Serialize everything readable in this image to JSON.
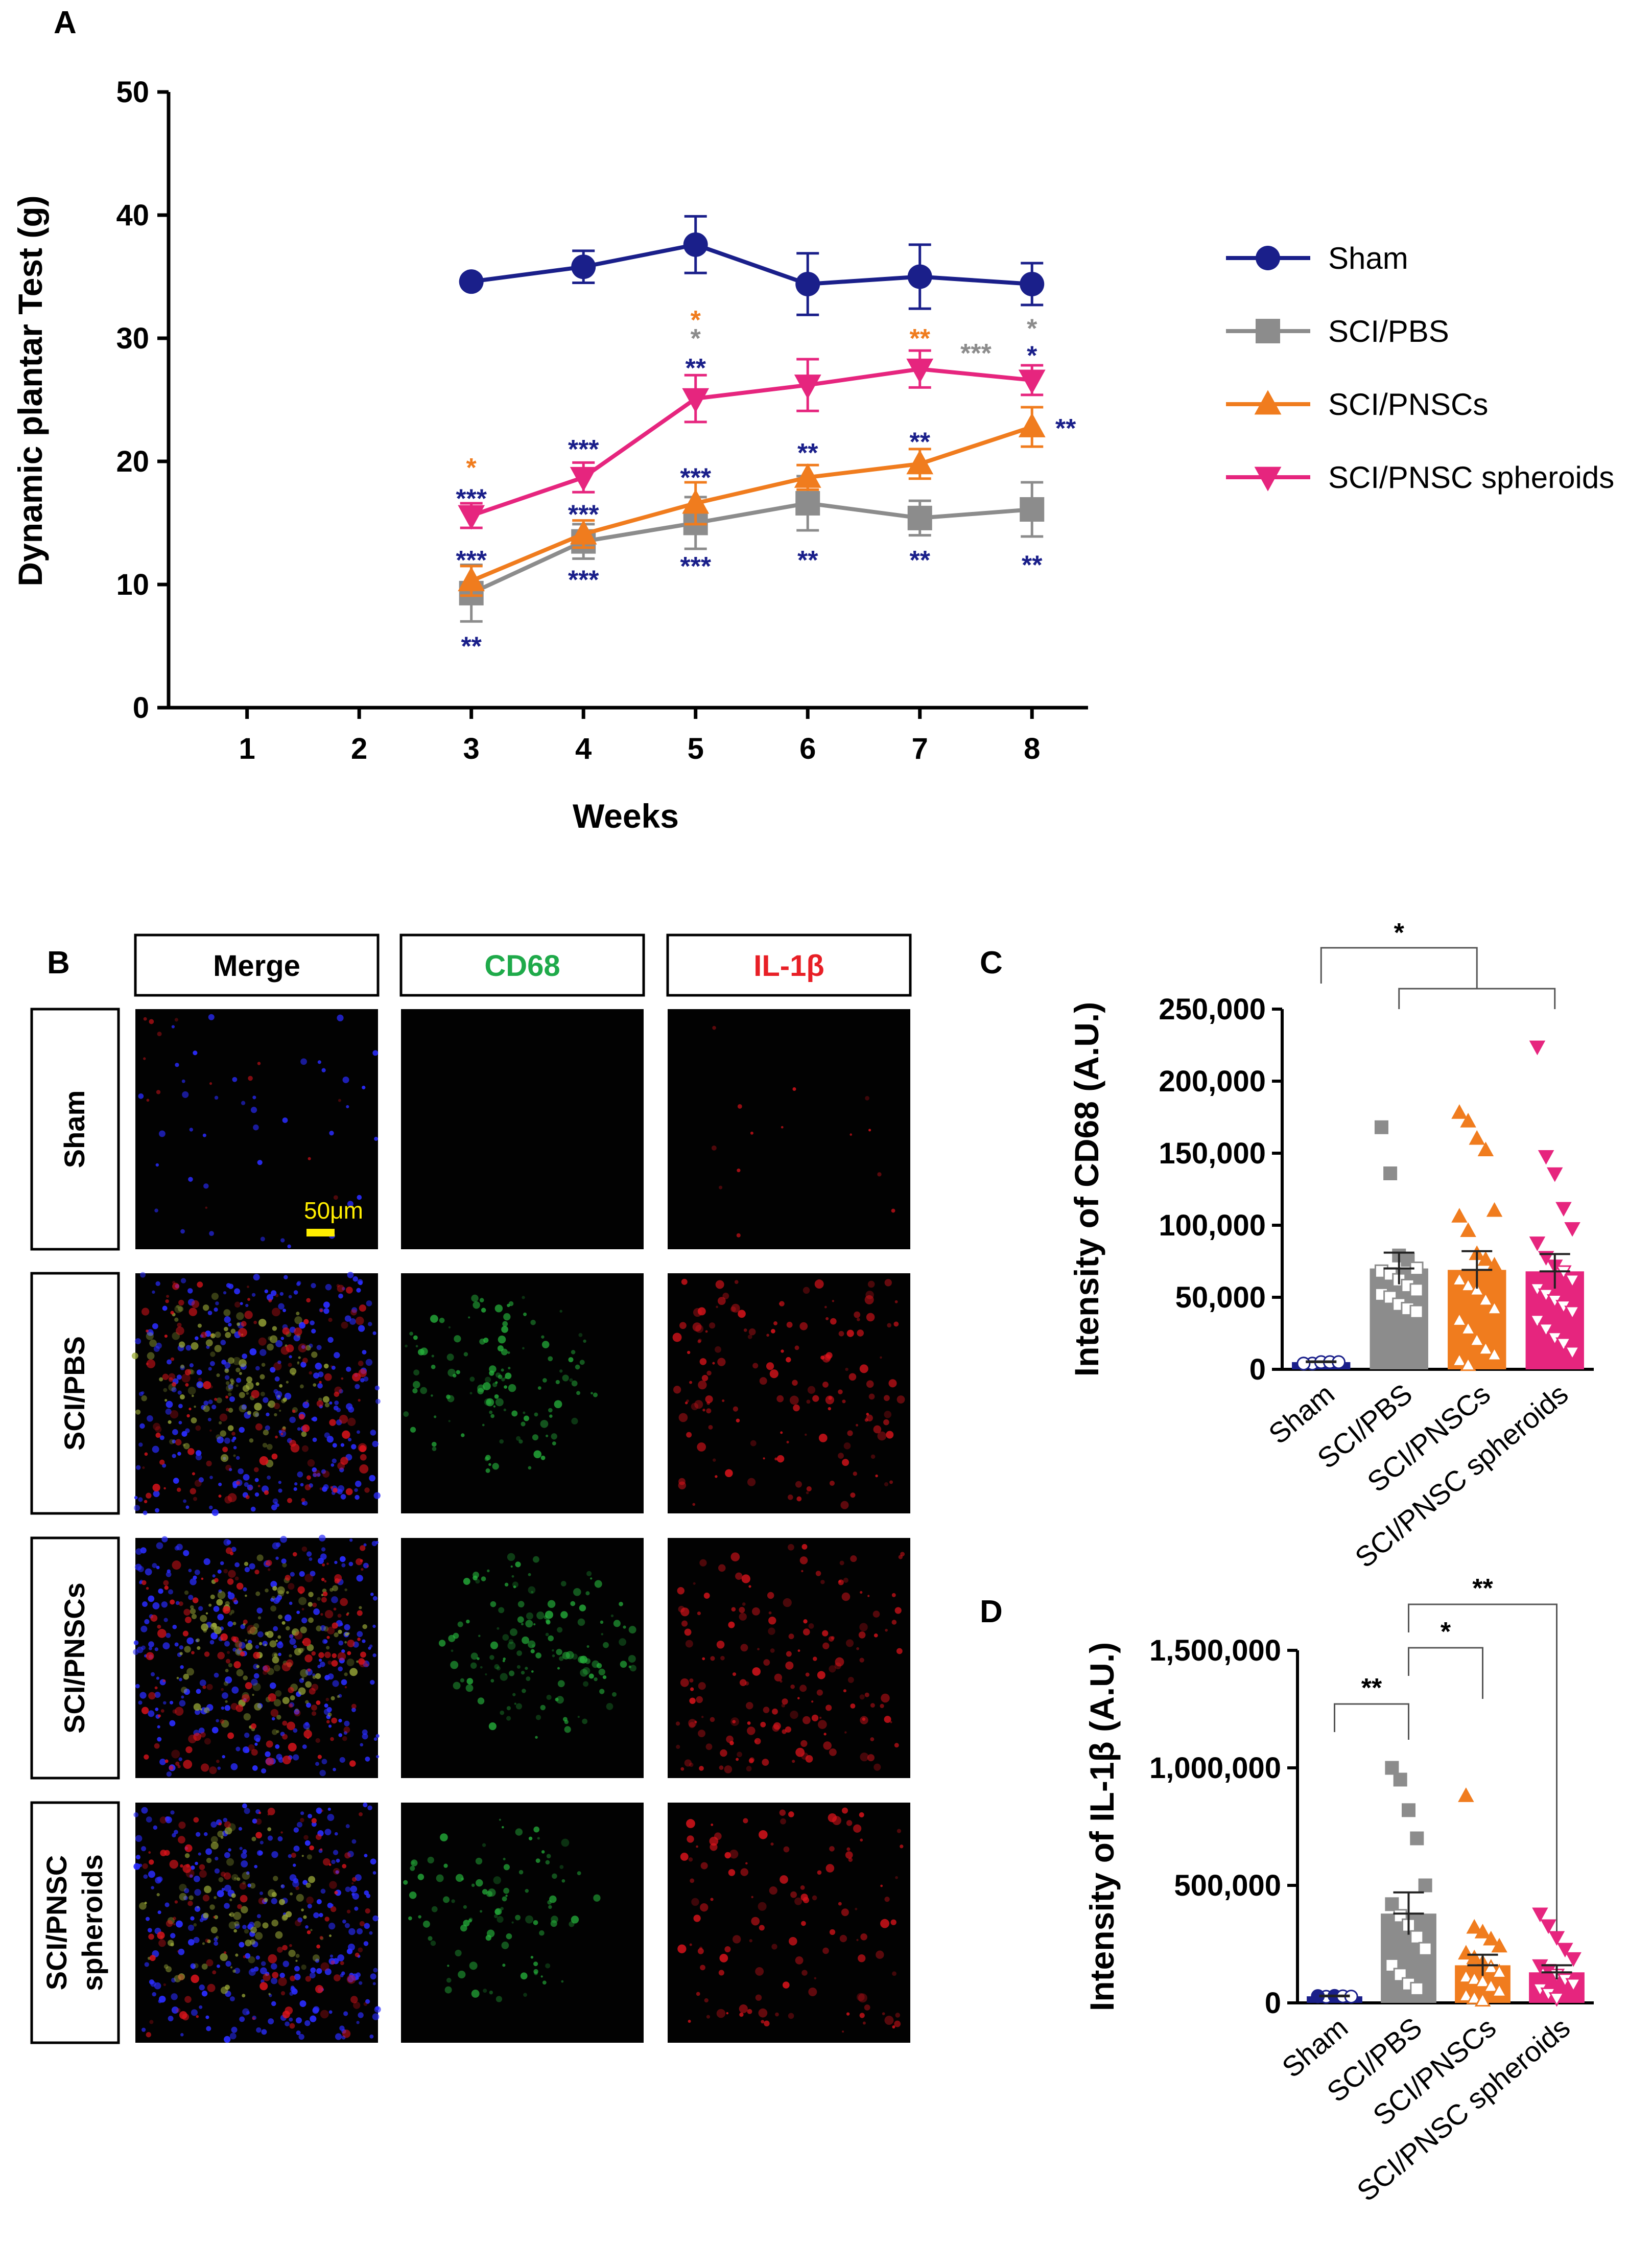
{
  "colors": {
    "sham": "#1a1f8a",
    "pbs": "#8c8c8c",
    "pnsc": "#f07c1e",
    "spheroid": "#e6257e",
    "sig_navy": "#1a1f8a",
    "scale_bar": "#ffee00",
    "merge_label": "#000000",
    "cd68_label": "#1faa4a",
    "il1b_label": "#e81f26"
  },
  "panel_labels": {
    "a": "A",
    "b": "B",
    "c": "C",
    "d": "D"
  },
  "chart_data": [
    {
      "panel": "A",
      "type": "line",
      "xlabel": "Weeks",
      "ylabel": "Dynamic plantar Test (g)",
      "x_ticks": [
        "1",
        "2",
        "3",
        "4",
        "5",
        "6",
        "7",
        "8"
      ],
      "y_ticks": [
        "0",
        "10",
        "20",
        "30",
        "40",
        "50"
      ],
      "ylim": [
        0,
        50
      ],
      "xlim": [
        0.3,
        8.5
      ],
      "legend_position": "right",
      "series": [
        {
          "name": "Sham",
          "key": "sham",
          "marker": "circle",
          "x": [
            3,
            4,
            5,
            6,
            7,
            8
          ],
          "y": [
            34.6,
            35.8,
            37.6,
            34.4,
            35.0,
            34.4
          ],
          "err": [
            0.2,
            1.3,
            2.3,
            2.5,
            2.6,
            1.7
          ]
        },
        {
          "name": "SCI/PBS",
          "key": "pbs",
          "marker": "square",
          "x": [
            3,
            4,
            5,
            6,
            7,
            8
          ],
          "y": [
            9.3,
            13.5,
            15.0,
            16.6,
            15.4,
            16.1
          ],
          "err": [
            2.3,
            1.4,
            2.1,
            2.2,
            1.4,
            2.2
          ]
        },
        {
          "name": "SCI/PNSCs",
          "key": "pnsc",
          "marker": "triangle-up",
          "x": [
            3,
            4,
            5,
            6,
            7,
            8
          ],
          "y": [
            10.3,
            14.1,
            16.6,
            18.7,
            19.8,
            22.8
          ],
          "err": [
            1.2,
            1.1,
            1.7,
            1.0,
            1.2,
            1.6
          ]
        },
        {
          "name": "SCI/PNSC spheroids",
          "key": "spheroid",
          "marker": "triangle-down",
          "x": [
            3,
            4,
            5,
            6,
            7,
            8
          ],
          "y": [
            15.6,
            18.7,
            25.1,
            26.2,
            27.5,
            26.6
          ],
          "err": [
            1.0,
            1.2,
            1.9,
            2.1,
            1.5,
            1.2
          ]
        }
      ],
      "annotations": [
        {
          "x": 3,
          "y": 19.5,
          "text": "*",
          "color": "pnsc"
        },
        {
          "x": 3,
          "y": 17.0,
          "text": "***",
          "color": "sig_navy"
        },
        {
          "x": 3,
          "y": 12.0,
          "text": "***",
          "color": "sig_navy"
        },
        {
          "x": 3,
          "y": 5.0,
          "text": "**",
          "color": "sig_navy"
        },
        {
          "x": 4,
          "y": 21.0,
          "text": "***",
          "color": "sig_navy"
        },
        {
          "x": 4,
          "y": 15.7,
          "text": "***",
          "color": "sig_navy"
        },
        {
          "x": 4,
          "y": 10.4,
          "text": "***",
          "color": "sig_navy"
        },
        {
          "x": 5,
          "y": 31.5,
          "text": "*",
          "color": "pnsc"
        },
        {
          "x": 5,
          "y": 30.0,
          "text": "*",
          "color": "pbs"
        },
        {
          "x": 5,
          "y": 27.6,
          "text": "**",
          "color": "sig_navy"
        },
        {
          "x": 5,
          "y": 18.7,
          "text": "***",
          "color": "sig_navy"
        },
        {
          "x": 5,
          "y": 11.5,
          "text": "***",
          "color": "sig_navy"
        },
        {
          "x": 6,
          "y": 20.7,
          "text": "**",
          "color": "sig_navy"
        },
        {
          "x": 6,
          "y": 12.0,
          "text": "**",
          "color": "sig_navy"
        },
        {
          "x": 7,
          "y": 30.0,
          "text": "**",
          "color": "pnsc"
        },
        {
          "x": 7.5,
          "y": 28.8,
          "text": "***",
          "color": "pbs"
        },
        {
          "x": 7,
          "y": 21.6,
          "text": "**",
          "color": "sig_navy"
        },
        {
          "x": 7,
          "y": 12.0,
          "text": "**",
          "color": "sig_navy"
        },
        {
          "x": 8,
          "y": 30.8,
          "text": "*",
          "color": "pbs"
        },
        {
          "x": 8,
          "y": 28.6,
          "text": "*",
          "color": "sig_navy"
        },
        {
          "x": 8.3,
          "y": 22.7,
          "text": "**",
          "color": "sig_navy"
        },
        {
          "x": 8,
          "y": 11.6,
          "text": "**",
          "color": "sig_navy"
        }
      ]
    },
    {
      "panel": "C",
      "type": "bar",
      "ylabel": "Intensity of CD68 (A.U.)",
      "categories": [
        "Sham",
        "SCI/PBS",
        "SCI/PNSCs",
        "SCI/PNSC spheroids"
      ],
      "keys": [
        "sham",
        "pbs",
        "pnsc",
        "spheroid"
      ],
      "markers": [
        "circle",
        "square",
        "triangle-up",
        "triangle-down"
      ],
      "values": [
        5000,
        70000,
        69000,
        68000
      ],
      "sem": [
        500,
        11000,
        13000,
        12000
      ],
      "ylim": [
        0,
        250000
      ],
      "y_ticks": [
        "0",
        "50,000",
        "100,000",
        "150,000",
        "200,000",
        "250,000"
      ],
      "points": [
        [
          4000,
          4000,
          5000,
          5000,
          5000,
          4000
        ],
        [
          168000,
          136000,
          79000,
          76000,
          70000,
          68000,
          66000,
          62000,
          58000,
          55000,
          52000,
          50000,
          45000,
          42000,
          40000
        ],
        [
          178000,
          172000,
          160000,
          152000,
          110000,
          106000,
          96000,
          80000,
          76000,
          72000,
          62000,
          58000,
          55000,
          48000,
          42000,
          34000,
          28000,
          20000,
          14000,
          10000,
          6000,
          3000
        ],
        [
          224000,
          148000,
          136000,
          112000,
          98000,
          88000,
          78000,
          72000,
          68000,
          62000,
          56000,
          52000,
          48000,
          44000,
          40000,
          34000,
          28000,
          22000,
          18000,
          12000
        ]
      ],
      "significance": [
        {
          "from": 0,
          "to_group": [
            1,
            2,
            3
          ],
          "text": "*"
        }
      ]
    },
    {
      "panel": "D",
      "type": "bar",
      "ylabel": "Intensity of IL-1β (A.U.)",
      "categories": [
        "Sham",
        "SCI/PBS",
        "SCI/PNSCs",
        "SCI/PNSC spheroids"
      ],
      "keys": [
        "sham",
        "pbs",
        "pnsc",
        "spheroid"
      ],
      "markers": [
        "circle",
        "square",
        "triangle-up",
        "triangle-down"
      ],
      "values": [
        28000,
        380000,
        160000,
        130000
      ],
      "sem": [
        3000,
        90000,
        45000,
        30000
      ],
      "ylim": [
        0,
        1500000
      ],
      "y_ticks": [
        "0",
        "500,000",
        "1,000,000",
        "1,500,000"
      ],
      "points": [
        [
          28000,
          26000,
          30000,
          28000,
          27000,
          29000
        ],
        [
          1000000,
          950000,
          820000,
          700000,
          500000,
          420000,
          370000,
          330000,
          280000,
          230000,
          160000,
          120000,
          80000,
          60000
        ],
        [
          880000,
          320000,
          300000,
          270000,
          240000,
          210000,
          190000,
          170000,
          150000,
          130000,
          110000,
          100000,
          90000,
          70000,
          50000,
          30000,
          20000,
          10000
        ],
        [
          380000,
          330000,
          280000,
          230000,
          190000,
          160000,
          140000,
          120000,
          100000,
          80000,
          60000,
          40000,
          20000
        ]
      ],
      "significance": [
        {
          "from": 0,
          "to": 1,
          "text": "**",
          "level": 0
        },
        {
          "from": 1,
          "to": 2,
          "text": "*",
          "level": 1
        },
        {
          "from": 1,
          "to": 3,
          "text": "**",
          "level": 2
        }
      ]
    }
  ],
  "micrograph_panel": {
    "column_headers": [
      "Merge",
      "CD68",
      "IL-1β"
    ],
    "row_labels": [
      "Sham",
      "SCI/PBS",
      "SCI/PNSCs",
      "SCI/PNSC spheroids"
    ],
    "row_label_lines": [
      [
        "Sham"
      ],
      [
        "SCI/PBS"
      ],
      [
        "SCI/PNSCs"
      ],
      [
        "SCI/PNSC",
        "spheroids"
      ]
    ],
    "scale_bar_label": "50μm"
  }
}
